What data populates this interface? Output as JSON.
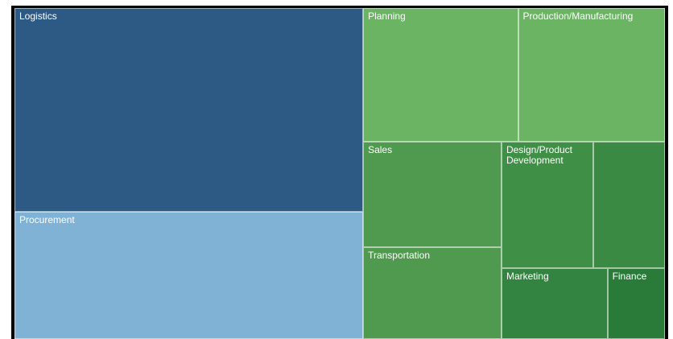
{
  "chart_data": {
    "type": "treemap",
    "categories": [
      "Logistics",
      "Procurement",
      "Planning",
      "Production/Manufacturing",
      "Sales",
      "Transportation",
      "Design/Product Development",
      null,
      "Marketing",
      "Finance"
    ],
    "values": [
      33,
      20.6,
      9.6,
      9.1,
      6.8,
      5.9,
      5.4,
      4.2,
      3.5,
      1.9
    ],
    "colors": [
      "#2d5a84",
      "#80b2d6",
      "#6bb464",
      "#6bb464",
      "#4f9a4e",
      "#4f9a4e",
      "#3f8f46",
      "#3a8a44",
      "#348441",
      "#2a7a3a"
    ]
  }
}
